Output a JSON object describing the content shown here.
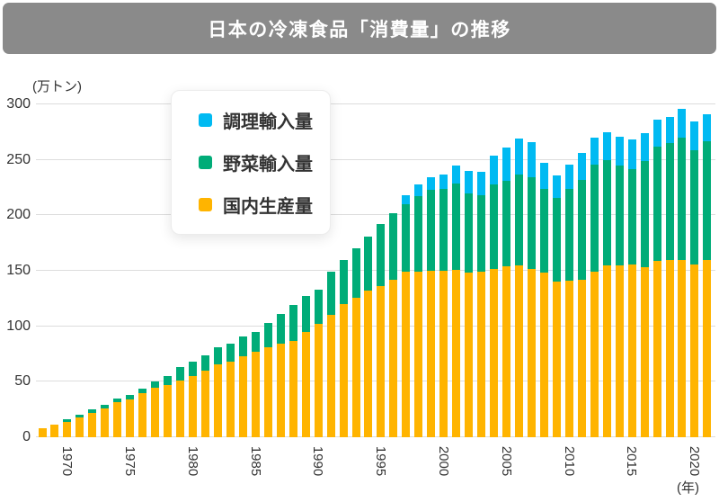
{
  "header": {
    "title": "日本の冷凍食品「消費量」の推移",
    "bg_color": "#8A8A8A",
    "text_color": "#FFFFFF"
  },
  "chart_data": {
    "type": "bar",
    "stacked": true,
    "title": "日本の冷凍食品「消費量」の推移",
    "ylabel": "(万トン)",
    "xlabel": "(年)",
    "ylim": [
      0,
      300
    ],
    "yticks": [
      0,
      50,
      100,
      150,
      200,
      250,
      300
    ],
    "xticks": [
      1970,
      1975,
      1980,
      1985,
      1990,
      1995,
      2000,
      2005,
      2010,
      2015,
      2020
    ],
    "grid": true,
    "gridline_color": "#DDDDDD",
    "legend_position": "top-left-inset",
    "years": [
      1968,
      1969,
      1970,
      1971,
      1972,
      1973,
      1974,
      1975,
      1976,
      1977,
      1978,
      1979,
      1980,
      1981,
      1982,
      1983,
      1984,
      1985,
      1986,
      1987,
      1988,
      1989,
      1990,
      1991,
      1992,
      1993,
      1994,
      1995,
      1996,
      1997,
      1998,
      1999,
      2000,
      2001,
      2002,
      2003,
      2004,
      2005,
      2006,
      2007,
      2008,
      2009,
      2010,
      2011,
      2012,
      2013,
      2014,
      2015,
      2016,
      2017,
      2018,
      2019,
      2020,
      2021
    ],
    "series": [
      {
        "name": "調理輸入量",
        "color": "#00BAF2",
        "values": [
          0,
          0,
          0,
          0,
          0,
          0,
          0,
          0,
          0,
          0,
          0,
          0,
          0,
          0,
          0,
          0,
          0,
          0,
          0,
          0,
          0,
          0,
          0,
          0,
          0,
          0,
          0,
          0,
          0,
          8,
          11,
          11,
          13,
          16,
          20,
          21,
          26,
          30,
          32,
          32,
          23,
          20,
          22,
          24,
          24,
          25,
          26,
          26,
          25,
          24,
          24,
          26,
          26,
          24
        ]
      },
      {
        "name": "野菜輸入量",
        "color": "#00AC78",
        "values": [
          0,
          0,
          2,
          2,
          3,
          3,
          3,
          4,
          4,
          5,
          8,
          12,
          13,
          14,
          15,
          16,
          18,
          18,
          22,
          27,
          32,
          32,
          31,
          39,
          40,
          44,
          49,
          56,
          60,
          61,
          68,
          73,
          74,
          78,
          72,
          69,
          76,
          77,
          82,
          82,
          76,
          76,
          83,
          90,
          97,
          95,
          90,
          86,
          96,
          103,
          105,
          110,
          103,
          107
        ]
      },
      {
        "name": "国内生産量",
        "color": "#FFB400",
        "values": [
          8,
          11,
          14,
          18,
          22,
          26,
          32,
          34,
          40,
          45,
          47,
          51,
          55,
          60,
          66,
          68,
          73,
          77,
          81,
          84,
          87,
          95,
          102,
          110,
          120,
          126,
          132,
          136,
          142,
          149,
          149,
          150,
          150,
          151,
          148,
          149,
          152,
          154,
          155,
          152,
          148,
          140,
          141,
          142,
          149,
          155,
          155,
          156,
          153,
          159,
          160,
          160,
          156,
          160
        ]
      }
    ]
  },
  "legend": {
    "items": [
      "調理輸入量",
      "野菜輸入量",
      "国内生産量"
    ]
  }
}
